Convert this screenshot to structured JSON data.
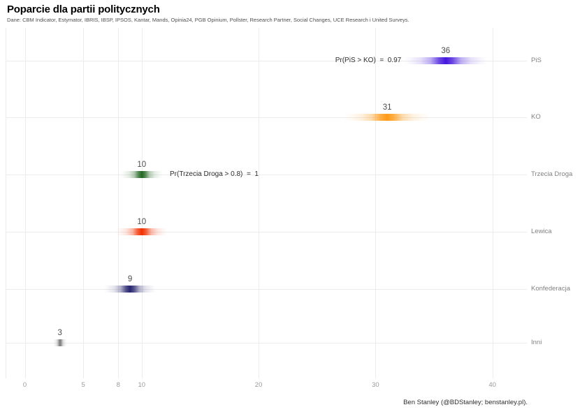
{
  "chart_data": {
    "type": "bar",
    "variant": "horizontal gradient density strips (poll-aggregation posterior intervals, ggdist style)",
    "title": "Poparcie dla partii politycznych",
    "subtitle": "Dane: CBM Indicator, Estymator, IBRIS, IBSP, IPSOS, Kantar, Mands, Opinia24, PGB Opinium, Pollster, Research Partner, Social Changes, UCE Research i United Surveys.",
    "categories": [
      "PiS",
      "KO",
      "Trzecia Droga",
      "Lewica",
      "Konfederacja",
      "Inni"
    ],
    "values": [
      36,
      31,
      10,
      10,
      9,
      3
    ],
    "value_labels": [
      "36",
      "31",
      "10",
      "10",
      "9",
      "3"
    ],
    "interval_half_widths": [
      3.6,
      3.7,
      1.8,
      2.2,
      2.2,
      0.6
    ],
    "colors": [
      "#4416dd",
      "#ff9a17",
      "#226622",
      "#f23000",
      "#26246e",
      "#7a7a7a"
    ],
    "xlabel": "",
    "ylabel": "",
    "xticks": [
      0,
      5,
      8,
      10,
      20,
      30,
      40
    ],
    "xlim": [
      -1.6,
      43
    ],
    "grid": true,
    "legend_position": "none",
    "grid_color": "#ececec",
    "annotations": [
      {
        "text": "Pr(PiS > KO)  =  0.97",
        "category": "PiS",
        "name": "annotation-pis-vs-ko",
        "align": "right",
        "anchor_x": 32.2
      },
      {
        "text": "Pr(Trzecia Droga > 0.8)  =  1",
        "category": "Trzecia Droga",
        "name": "annotation-trzecia-droga-threshold",
        "align": "left",
        "anchor_x": 12.4
      }
    ],
    "caption": "Ben Stanley (@BDStanley; benstanley.pl)."
  }
}
